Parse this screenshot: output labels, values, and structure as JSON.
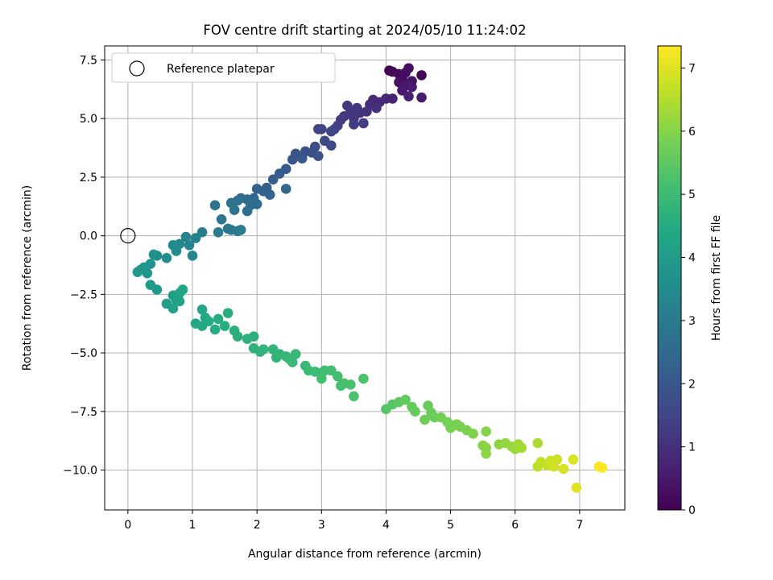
{
  "chart_data": {
    "type": "scatter",
    "title": "FOV centre drift starting at 2024/05/10 11:24:02",
    "xlabel": "Angular distance from reference (arcmin)",
    "ylabel": "Rotation from reference (arcmin)",
    "xlim": [
      -0.36,
      7.7
    ],
    "ylim": [
      -11.7,
      8.1
    ],
    "xticks": [
      0,
      1,
      2,
      3,
      4,
      5,
      6,
      7
    ],
    "xtick_labels": [
      "0",
      "1",
      "2",
      "3",
      "4",
      "5",
      "6",
      "7"
    ],
    "yticks": [
      -10.0,
      -7.5,
      -5.0,
      -2.5,
      0.0,
      2.5,
      5.0,
      7.5
    ],
    "ytick_labels": [
      "−10.0",
      "−7.5",
      "−5.0",
      "−2.5",
      "0.0",
      "2.5",
      "5.0",
      "7.5"
    ],
    "grid": true,
    "legend": {
      "position": "top-left",
      "entries": [
        "Reference platepar"
      ]
    },
    "reference_point": {
      "x": 0,
      "y": 0
    },
    "colorbar": {
      "label": "Hours from first FF file",
      "range": [
        0,
        7.35
      ],
      "ticks": [
        0,
        1,
        2,
        3,
        4,
        5,
        6,
        7
      ],
      "tick_labels": [
        "0",
        "1",
        "2",
        "3",
        "4",
        "5",
        "6",
        "7"
      ],
      "colormap": "viridis"
    },
    "series": [
      {
        "points": [
          [
            4.05,
            7.05,
            0.05
          ],
          [
            4.1,
            7.0,
            0.1
          ],
          [
            4.2,
            6.9,
            0.15
          ],
          [
            4.25,
            6.7,
            0.2
          ],
          [
            4.3,
            6.95,
            0.25
          ],
          [
            4.35,
            7.15,
            0.3
          ],
          [
            4.2,
            6.55,
            0.35
          ],
          [
            4.4,
            6.6,
            0.4
          ],
          [
            4.3,
            6.4,
            0.45
          ],
          [
            4.25,
            6.2,
            0.5
          ],
          [
            4.4,
            6.35,
            0.55
          ],
          [
            4.55,
            6.85,
            0.1
          ],
          [
            4.55,
            5.9,
            0.6
          ],
          [
            4.35,
            5.95,
            0.65
          ],
          [
            4.1,
            5.85,
            0.7
          ],
          [
            4.0,
            5.85,
            0.8
          ],
          [
            3.9,
            5.7,
            0.85
          ],
          [
            3.8,
            5.8,
            0.9
          ],
          [
            3.75,
            5.6,
            0.95
          ],
          [
            3.85,
            5.45,
            1.0
          ],
          [
            3.7,
            5.3,
            1.05
          ],
          [
            3.6,
            5.25,
            1.1
          ],
          [
            3.55,
            5.45,
            1.12
          ],
          [
            3.5,
            5.0,
            1.15
          ],
          [
            3.45,
            5.3,
            1.18
          ],
          [
            3.4,
            5.55,
            1.2
          ],
          [
            3.35,
            5.1,
            1.22
          ],
          [
            3.3,
            4.95,
            1.25
          ],
          [
            3.5,
            4.75,
            1.28
          ],
          [
            3.65,
            4.8,
            1.3
          ],
          [
            3.25,
            4.7,
            1.35
          ],
          [
            3.2,
            4.55,
            1.4
          ],
          [
            3.0,
            4.55,
            1.45
          ],
          [
            2.95,
            4.55,
            1.5
          ],
          [
            3.15,
            4.45,
            1.55
          ],
          [
            3.05,
            4.05,
            1.6
          ],
          [
            3.15,
            3.85,
            1.65
          ],
          [
            2.9,
            3.8,
            1.7
          ],
          [
            2.85,
            3.55,
            1.75
          ],
          [
            2.75,
            3.6,
            1.8
          ],
          [
            2.95,
            3.4,
            1.85
          ],
          [
            2.6,
            3.5,
            1.9
          ],
          [
            2.55,
            3.25,
            1.95
          ],
          [
            2.7,
            3.3,
            2.0
          ],
          [
            2.45,
            2.85,
            2.05
          ],
          [
            2.35,
            2.65,
            2.1
          ],
          [
            2.25,
            2.4,
            2.15
          ],
          [
            2.15,
            2.05,
            2.2
          ],
          [
            2.1,
            1.9,
            2.25
          ],
          [
            2.0,
            2.0,
            2.3
          ],
          [
            2.2,
            1.75,
            2.35
          ],
          [
            2.45,
            2.0,
            2.4
          ],
          [
            1.95,
            1.6,
            2.45
          ],
          [
            1.85,
            1.55,
            2.5
          ],
          [
            1.75,
            1.6,
            2.55
          ],
          [
            1.9,
            1.3,
            2.6
          ],
          [
            2.0,
            1.35,
            2.62
          ],
          [
            1.85,
            1.05,
            2.65
          ],
          [
            1.7,
            1.5,
            2.7
          ],
          [
            1.6,
            1.4,
            2.75
          ],
          [
            1.65,
            1.1,
            2.8
          ],
          [
            1.35,
            1.3,
            2.8
          ],
          [
            1.45,
            0.7,
            2.85
          ],
          [
            1.55,
            0.3,
            2.9
          ],
          [
            1.6,
            0.25,
            2.95
          ],
          [
            1.7,
            0.2,
            3.0
          ],
          [
            1.75,
            0.25,
            3.05
          ],
          [
            1.4,
            0.15,
            3.1
          ],
          [
            1.15,
            0.15,
            3.15
          ],
          [
            1.05,
            -0.1,
            3.2
          ],
          [
            0.9,
            -0.05,
            3.25
          ],
          [
            0.95,
            -0.4,
            3.3
          ],
          [
            1.0,
            -0.85,
            3.35
          ],
          [
            0.8,
            -0.35,
            3.4
          ],
          [
            0.7,
            -0.4,
            3.45
          ],
          [
            0.75,
            -0.65,
            3.5
          ],
          [
            0.6,
            -0.95,
            3.55
          ],
          [
            0.45,
            -0.85,
            3.6
          ],
          [
            0.4,
            -0.8,
            3.65
          ],
          [
            0.35,
            -1.2,
            3.7
          ],
          [
            0.25,
            -1.35,
            3.75
          ],
          [
            0.2,
            -1.45,
            3.8
          ],
          [
            0.3,
            -1.6,
            3.85
          ],
          [
            0.15,
            -1.55,
            3.9
          ],
          [
            0.35,
            -2.1,
            3.95
          ],
          [
            0.45,
            -2.3,
            4.0
          ],
          [
            0.6,
            -2.9,
            4.05
          ],
          [
            0.7,
            -2.55,
            4.1
          ],
          [
            0.75,
            -2.75,
            4.15
          ],
          [
            0.7,
            -3.1,
            4.2
          ],
          [
            0.8,
            -2.8,
            4.25
          ],
          [
            0.85,
            -2.3,
            4.3
          ],
          [
            0.8,
            -2.45,
            4.32
          ],
          [
            1.15,
            -3.15,
            4.35
          ],
          [
            1.2,
            -3.5,
            4.4
          ],
          [
            1.05,
            -3.75,
            4.42
          ],
          [
            1.15,
            -3.85,
            4.45
          ],
          [
            1.25,
            -3.65,
            4.48
          ],
          [
            1.35,
            -4.0,
            4.5
          ],
          [
            1.4,
            -3.55,
            4.52
          ],
          [
            1.55,
            -3.3,
            4.55
          ],
          [
            1.5,
            -3.85,
            4.57
          ],
          [
            1.65,
            -4.05,
            4.6
          ],
          [
            1.7,
            -4.3,
            4.62
          ],
          [
            1.85,
            -4.4,
            4.65
          ],
          [
            1.95,
            -4.3,
            4.67
          ],
          [
            1.95,
            -4.8,
            4.7
          ],
          [
            2.05,
            -4.95,
            4.72
          ],
          [
            2.1,
            -4.85,
            4.75
          ],
          [
            2.25,
            -4.85,
            4.77
          ],
          [
            2.35,
            -5.05,
            4.8
          ],
          [
            2.3,
            -5.2,
            4.82
          ],
          [
            2.45,
            -5.15,
            4.85
          ],
          [
            2.5,
            -5.25,
            4.87
          ],
          [
            2.6,
            -5.05,
            4.9
          ],
          [
            2.55,
            -5.4,
            4.92
          ],
          [
            2.75,
            -5.55,
            4.95
          ],
          [
            2.8,
            -5.75,
            4.97
          ],
          [
            2.9,
            -5.8,
            5.0
          ],
          [
            3.0,
            -5.85,
            5.02
          ],
          [
            3.05,
            -5.75,
            5.05
          ],
          [
            3.15,
            -5.75,
            5.07
          ],
          [
            3.0,
            -6.1,
            5.1
          ],
          [
            3.25,
            -6.0,
            5.12
          ],
          [
            3.3,
            -6.4,
            5.15
          ],
          [
            3.35,
            -6.3,
            5.17
          ],
          [
            3.45,
            -6.35,
            5.2
          ],
          [
            3.5,
            -6.85,
            5.22
          ],
          [
            3.65,
            -6.1,
            5.25
          ],
          [
            4.0,
            -7.4,
            5.4
          ],
          [
            4.1,
            -7.2,
            5.45
          ],
          [
            4.2,
            -7.1,
            5.5
          ],
          [
            4.3,
            -7.0,
            5.55
          ],
          [
            4.4,
            -7.3,
            5.6
          ],
          [
            4.45,
            -7.5,
            5.62
          ],
          [
            4.65,
            -7.25,
            5.65
          ],
          [
            4.7,
            -7.55,
            5.68
          ],
          [
            4.75,
            -7.75,
            5.7
          ],
          [
            4.6,
            -7.85,
            5.72
          ],
          [
            4.85,
            -7.75,
            5.75
          ],
          [
            4.95,
            -7.95,
            5.78
          ],
          [
            5.0,
            -8.2,
            5.8
          ],
          [
            5.05,
            -8.1,
            5.82
          ],
          [
            5.1,
            -8.05,
            5.85
          ],
          [
            5.15,
            -8.15,
            5.88
          ],
          [
            5.25,
            -8.3,
            5.9
          ],
          [
            5.35,
            -8.45,
            5.95
          ],
          [
            5.55,
            -8.35,
            6.0
          ],
          [
            5.5,
            -8.95,
            6.02
          ],
          [
            5.55,
            -9.05,
            6.05
          ],
          [
            5.55,
            -9.3,
            6.08
          ],
          [
            5.75,
            -8.9,
            6.1
          ],
          [
            5.85,
            -8.85,
            6.15
          ],
          [
            5.95,
            -9.0,
            6.2
          ],
          [
            6.0,
            -9.1,
            6.25
          ],
          [
            6.05,
            -8.9,
            6.3
          ],
          [
            6.1,
            -9.05,
            6.35
          ],
          [
            6.35,
            -8.85,
            6.4
          ],
          [
            6.35,
            -9.85,
            6.6
          ],
          [
            6.4,
            -9.65,
            6.65
          ],
          [
            6.5,
            -9.8,
            6.7
          ],
          [
            6.55,
            -9.6,
            6.75
          ],
          [
            6.65,
            -9.55,
            6.8
          ],
          [
            6.6,
            -9.85,
            6.85
          ],
          [
            6.75,
            -9.95,
            6.9
          ],
          [
            6.9,
            -9.55,
            6.95
          ],
          [
            6.95,
            -10.75,
            7.0
          ],
          [
            7.3,
            -9.85,
            7.3
          ],
          [
            7.35,
            -9.9,
            7.35
          ]
        ]
      }
    ]
  }
}
